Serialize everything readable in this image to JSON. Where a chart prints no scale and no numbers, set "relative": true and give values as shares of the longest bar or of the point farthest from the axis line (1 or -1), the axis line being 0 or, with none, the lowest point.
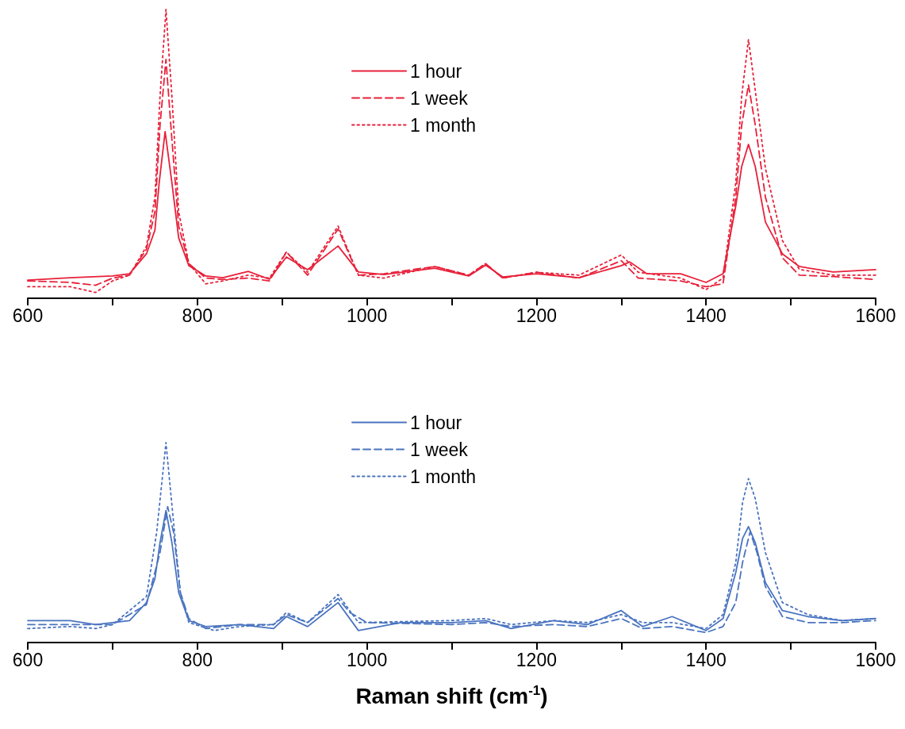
{
  "chart_data": [
    {
      "type": "line",
      "relative": true,
      "legend": "top",
      "grid": false,
      "marker": "none",
      "tick_labels": "x",
      "xlim": [
        600,
        1600
      ],
      "xticks": [
        600,
        {
          "value": 700,
          "label": null
        },
        800,
        {
          "value": 900,
          "label": null
        },
        1000,
        {
          "value": 1100,
          "label": null
        },
        1200,
        {
          "value": 1300,
          "label": null
        },
        1400,
        {
          "value": 1500,
          "label": null
        },
        1600
      ],
      "series": [
        {
          "name": "1 hour",
          "color": "#e8213a",
          "line_style": "solid",
          "x": [
            600,
            650,
            700,
            720,
            740,
            750,
            755,
            762,
            770,
            778,
            790,
            810,
            830,
            860,
            885,
            905,
            930,
            966,
            990,
            1020,
            1080,
            1120,
            1140,
            1160,
            1200,
            1250,
            1300,
            1310,
            1330,
            1370,
            1400,
            1420,
            1435,
            1442,
            1450,
            1458,
            1470,
            1490,
            1510,
            1550,
            1600
          ],
          "values": [
            0.063,
            0.071,
            0.077,
            0.085,
            0.154,
            0.236,
            0.4,
            0.577,
            0.4,
            0.209,
            0.113,
            0.077,
            0.071,
            0.093,
            0.066,
            0.143,
            0.099,
            0.181,
            0.091,
            0.082,
            0.104,
            0.077,
            0.115,
            0.074,
            0.085,
            0.071,
            0.113,
            0.126,
            0.085,
            0.085,
            0.055,
            0.085,
            0.319,
            0.456,
            0.533,
            0.456,
            0.264,
            0.154,
            0.11,
            0.091,
            0.099
          ]
        },
        {
          "name": "1 week",
          "color": "#e8213a",
          "line_style": "dashed",
          "x": [
            600,
            650,
            680,
            700,
            720,
            740,
            750,
            756,
            763,
            770,
            778,
            790,
            810,
            830,
            860,
            885,
            905,
            930,
            966,
            990,
            1020,
            1080,
            1120,
            1140,
            1160,
            1200,
            1250,
            1300,
            1320,
            1370,
            1400,
            1420,
            1435,
            1442,
            1450,
            1458,
            1470,
            1490,
            1510,
            1550,
            1600
          ],
          "values": [
            0.06,
            0.055,
            0.045,
            0.07,
            0.08,
            0.17,
            0.3,
            0.6,
            0.827,
            0.55,
            0.25,
            0.12,
            0.07,
            0.065,
            0.07,
            0.06,
            0.16,
            0.08,
            0.24,
            0.08,
            0.085,
            0.11,
            0.08,
            0.12,
            0.07,
            0.09,
            0.07,
            0.13,
            0.07,
            0.06,
            0.04,
            0.05,
            0.35,
            0.6,
            0.739,
            0.6,
            0.35,
            0.14,
            0.08,
            0.075,
            0.065
          ]
        },
        {
          "name": "1 month",
          "color": "#e8213a",
          "line_style": "dotted",
          "x": [
            600,
            650,
            680,
            700,
            720,
            740,
            750,
            756,
            763,
            770,
            778,
            790,
            810,
            830,
            860,
            885,
            905,
            930,
            966,
            990,
            1020,
            1080,
            1120,
            1140,
            1160,
            1200,
            1250,
            1300,
            1320,
            1370,
            1400,
            1420,
            1435,
            1442,
            1450,
            1458,
            1470,
            1490,
            1510,
            1550,
            1600
          ],
          "values": [
            0.04,
            0.04,
            0.02,
            0.06,
            0.08,
            0.18,
            0.35,
            0.7,
            1.0,
            0.7,
            0.3,
            0.12,
            0.05,
            0.06,
            0.08,
            0.07,
            0.16,
            0.09,
            0.25,
            0.08,
            0.07,
            0.11,
            0.08,
            0.12,
            0.07,
            0.09,
            0.08,
            0.15,
            0.09,
            0.07,
            0.03,
            0.07,
            0.4,
            0.7,
            0.896,
            0.72,
            0.45,
            0.2,
            0.1,
            0.08,
            0.08
          ]
        }
      ]
    },
    {
      "type": "line",
      "relative": true,
      "legend": "top",
      "grid": false,
      "marker": "none",
      "tick_labels": "x",
      "xlabel": "Raman shift (cm$^{-1}$)",
      "xlim": [
        600,
        1600
      ],
      "xticks": [
        600,
        {
          "value": 700,
          "label": null
        },
        800,
        {
          "value": 900,
          "label": null
        },
        1000,
        {
          "value": 1100,
          "label": null
        },
        1200,
        {
          "value": 1300,
          "label": null
        },
        1400,
        {
          "value": 1500,
          "label": null
        },
        1600
      ],
      "series": [
        {
          "name": "1 hour",
          "color": "#4a74c0",
          "line_style": "solid",
          "x": [
            600,
            650,
            680,
            700,
            720,
            740,
            750,
            756,
            763,
            770,
            778,
            790,
            810,
            850,
            890,
            905,
            930,
            966,
            990,
            1040,
            1100,
            1140,
            1170,
            1220,
            1260,
            1300,
            1325,
            1360,
            1400,
            1420,
            1435,
            1443,
            1450,
            1458,
            1470,
            1490,
            1520,
            1560,
            1600
          ],
          "values": [
            0.11,
            0.11,
            0.09,
            0.1,
            0.11,
            0.2,
            0.32,
            0.5,
            0.66,
            0.5,
            0.25,
            0.11,
            0.08,
            0.09,
            0.07,
            0.13,
            0.08,
            0.2,
            0.06,
            0.1,
            0.1,
            0.11,
            0.07,
            0.11,
            0.09,
            0.16,
            0.08,
            0.13,
            0.06,
            0.12,
            0.35,
            0.52,
            0.58,
            0.5,
            0.3,
            0.16,
            0.13,
            0.11,
            0.12
          ]
        },
        {
          "name": "1 week",
          "color": "#4a74c0",
          "line_style": "dashed",
          "x": [
            600,
            650,
            700,
            740,
            756,
            765,
            772,
            780,
            790,
            810,
            850,
            890,
            905,
            930,
            966,
            980,
            1000,
            1100,
            1140,
            1170,
            1220,
            1260,
            1300,
            1325,
            1360,
            1400,
            1420,
            1435,
            1443,
            1452,
            1460,
            1470,
            1490,
            1520,
            1560,
            1600
          ],
          "values": [
            0.09,
            0.09,
            0.09,
            0.19,
            0.45,
            0.68,
            0.55,
            0.25,
            0.12,
            0.07,
            0.09,
            0.09,
            0.14,
            0.1,
            0.22,
            0.15,
            0.1,
            0.09,
            0.1,
            0.08,
            0.09,
            0.08,
            0.12,
            0.07,
            0.08,
            0.05,
            0.08,
            0.2,
            0.4,
            0.556,
            0.45,
            0.28,
            0.13,
            0.1,
            0.1,
            0.11
          ]
        },
        {
          "name": "1 month",
          "color": "#4a74c0",
          "line_style": "dotted",
          "x": [
            600,
            650,
            680,
            700,
            740,
            752,
            763,
            772,
            780,
            790,
            820,
            850,
            890,
            905,
            930,
            966,
            990,
            1100,
            1140,
            1170,
            1220,
            1260,
            1300,
            1325,
            1360,
            1400,
            1420,
            1435,
            1443,
            1450,
            1458,
            1470,
            1490,
            1520,
            1560,
            1600
          ],
          "values": [
            0.07,
            0.08,
            0.07,
            0.09,
            0.23,
            0.55,
            1.0,
            0.6,
            0.25,
            0.1,
            0.06,
            0.08,
            0.09,
            0.15,
            0.1,
            0.24,
            0.1,
            0.11,
            0.12,
            0.09,
            0.11,
            0.1,
            0.14,
            0.1,
            0.1,
            0.07,
            0.14,
            0.4,
            0.7,
            0.82,
            0.72,
            0.45,
            0.2,
            0.14,
            0.11,
            0.12
          ]
        }
      ]
    }
  ]
}
